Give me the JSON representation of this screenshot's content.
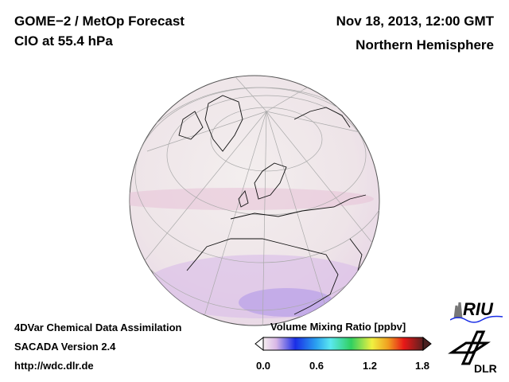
{
  "header": {
    "title": "GOME−2 / MetOp Forecast",
    "subtitle": "ClO at 55.4 hPa",
    "datetime": "Nov 18, 2013, 12:00 GMT",
    "region": "Northern Hemisphere"
  },
  "footer": {
    "line1": "4DVar Chemical Data Assimilation",
    "line2": "SACADA Version 2.4",
    "line3": "http://wdc.dlr.de"
  },
  "colorbar": {
    "title": "Volume Mixing Ratio [ppbv]",
    "ticks": [
      "0.0",
      "0.6",
      "1.2",
      "1.8"
    ],
    "range": [
      0.0,
      1.8
    ],
    "colors": [
      "#f6eef0",
      "#d9b8e6",
      "#1a2ee6",
      "#2aa0f0",
      "#5ae8f0",
      "#30d060",
      "#f0f040",
      "#f0a020",
      "#e81818",
      "#5a2020"
    ]
  },
  "logos": {
    "riu": "RIU",
    "dlr": "DLR"
  }
}
